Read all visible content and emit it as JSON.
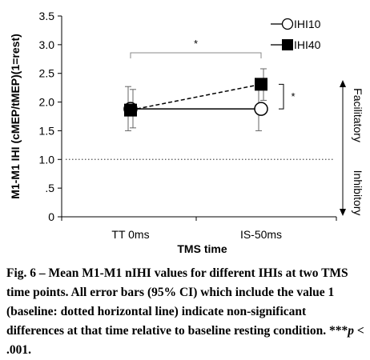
{
  "chart_data": {
    "type": "line",
    "categories": [
      "TT 0ms",
      "IS-50ms"
    ],
    "series": [
      {
        "name": "IHI10",
        "values": [
          1.88,
          1.88
        ],
        "ci_low": [
          1.5,
          1.5
        ],
        "ci_high": [
          2.27,
          2.25
        ],
        "marker": "open-circle",
        "line": "solid",
        "color": "#000000"
      },
      {
        "name": "IHI40",
        "values": [
          1.86,
          2.31
        ],
        "ci_low": [
          1.55,
          2.03
        ],
        "ci_high": [
          2.22,
          2.58
        ],
        "marker": "filled-square",
        "line": "dashed",
        "color": "#000000"
      }
    ],
    "xlabel": "TMS time",
    "ylabel": "M1-M1 IHI (cMEP/tMEP)(1=rest)",
    "ylim": [
      0,
      3.5
    ],
    "yticks": [
      0,
      0.5,
      1.0,
      1.5,
      2.0,
      2.5,
      3.0,
      3.5
    ],
    "ytick_labels": [
      "0",
      ".5",
      "1.0",
      "1.5",
      "2.0",
      "2.5",
      "3.0",
      "3.5"
    ],
    "baseline": {
      "value": 1.0,
      "style": "dotted"
    },
    "legend_position": "top-right",
    "side_labels": {
      "upper": "Facilitatory",
      "lower": "Inhibitory"
    },
    "annotations": {
      "between_times": "*",
      "between_ihis": "*"
    }
  },
  "caption": {
    "fig_label": "Fig. 6",
    "dash": "–",
    "text": "Mean M1-M1 nIHI values for different IHIs at two TMS time points. All error bars (95% CI) which include the value 1 (baseline: dotted horizontal line) indicate non-significant differences at that time relative to baseline resting condition.",
    "stars": "***",
    "p_symbol": "p",
    "p_rest": " < .001."
  }
}
